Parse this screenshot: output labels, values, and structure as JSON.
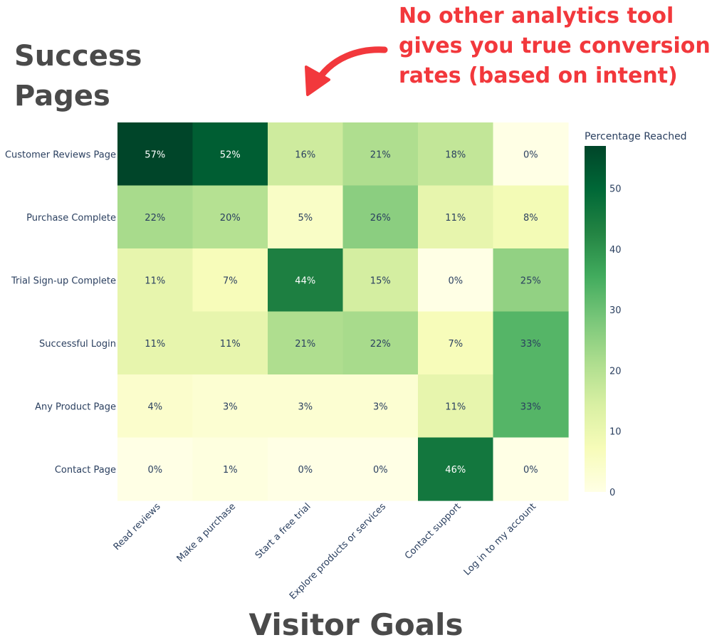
{
  "annotations": {
    "success_pages_line1": "Success",
    "success_pages_line2": "Pages",
    "callout_line1": "No other analytics tool",
    "callout_line2": "gives you true conversion",
    "callout_line3": "rates (based on intent)",
    "visitor_goals": "Visitor Goals"
  },
  "colors": {
    "annotation_text": "#4a4a4a",
    "callout": "#f2383c",
    "axis_text": "#2a3f5f",
    "cell_text_dark": "#2a3f5f",
    "cell_text_light": "#ffffff"
  },
  "chart_data": {
    "type": "heatmap",
    "rows": [
      "Customer Reviews Page",
      "Purchase Complete",
      "Trial Sign-up Complete",
      "Successful Login",
      "Any Product Page",
      "Contact Page"
    ],
    "columns": [
      "Read reviews",
      "Make a purchase",
      "Start a free trial",
      "Explore products or services",
      "Contact support",
      "Log in to my account"
    ],
    "values": [
      [
        57,
        52,
        16,
        21,
        18,
        0
      ],
      [
        22,
        20,
        5,
        26,
        11,
        8
      ],
      [
        11,
        7,
        44,
        15,
        0,
        25
      ],
      [
        11,
        11,
        21,
        22,
        7,
        33
      ],
      [
        4,
        3,
        3,
        3,
        11,
        33
      ],
      [
        0,
        1,
        0,
        0,
        46,
        0
      ]
    ],
    "value_suffix": "%",
    "colorscale": "YlGn",
    "colorbar": {
      "title": "Percentage Reached",
      "range": [
        0,
        57
      ],
      "ticks": [
        0,
        10,
        20,
        30,
        40,
        50
      ]
    }
  }
}
